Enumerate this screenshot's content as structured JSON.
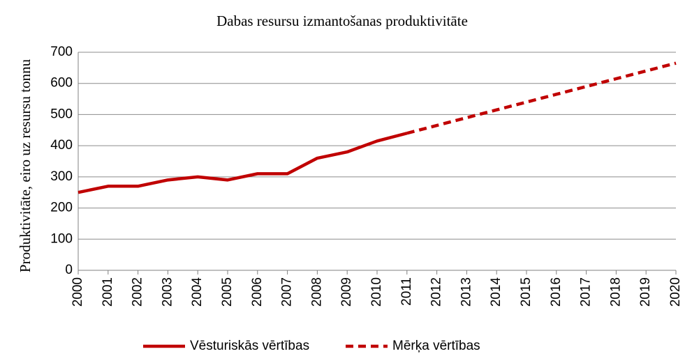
{
  "chart_data": {
    "type": "line",
    "title": "Dabas resursu izmantošanas produktivitāte",
    "y_label": "Produktivitāte, eiro uz resursu tonnu",
    "categories": [
      "2000",
      "2001",
      "2002",
      "2003",
      "2004",
      "2005",
      "2006",
      "2007",
      "2008",
      "2009",
      "2010",
      "2011",
      "2012",
      "2013",
      "2014",
      "2015",
      "2016",
      "2017",
      "2018",
      "2019",
      "2020"
    ],
    "series": [
      {
        "name": "Vēsturiskās vērtības",
        "color": "#c00000",
        "dashed": false,
        "values": [
          250,
          270,
          270,
          290,
          300,
          290,
          310,
          310,
          360,
          380,
          415,
          440,
          null,
          null,
          null,
          null,
          null,
          null,
          null,
          null,
          null
        ]
      },
      {
        "name": "Mērķa vērtības",
        "color": "#c00000",
        "dashed": true,
        "values": [
          null,
          null,
          null,
          null,
          null,
          null,
          null,
          null,
          null,
          null,
          null,
          440,
          465,
          490,
          515,
          540,
          565,
          590,
          615,
          640,
          665
        ]
      }
    ],
    "ylim": [
      0,
      700
    ],
    "yticks": [
      0,
      100,
      200,
      300,
      400,
      500,
      600,
      700
    ],
    "grid": true,
    "legend": "bottom"
  }
}
